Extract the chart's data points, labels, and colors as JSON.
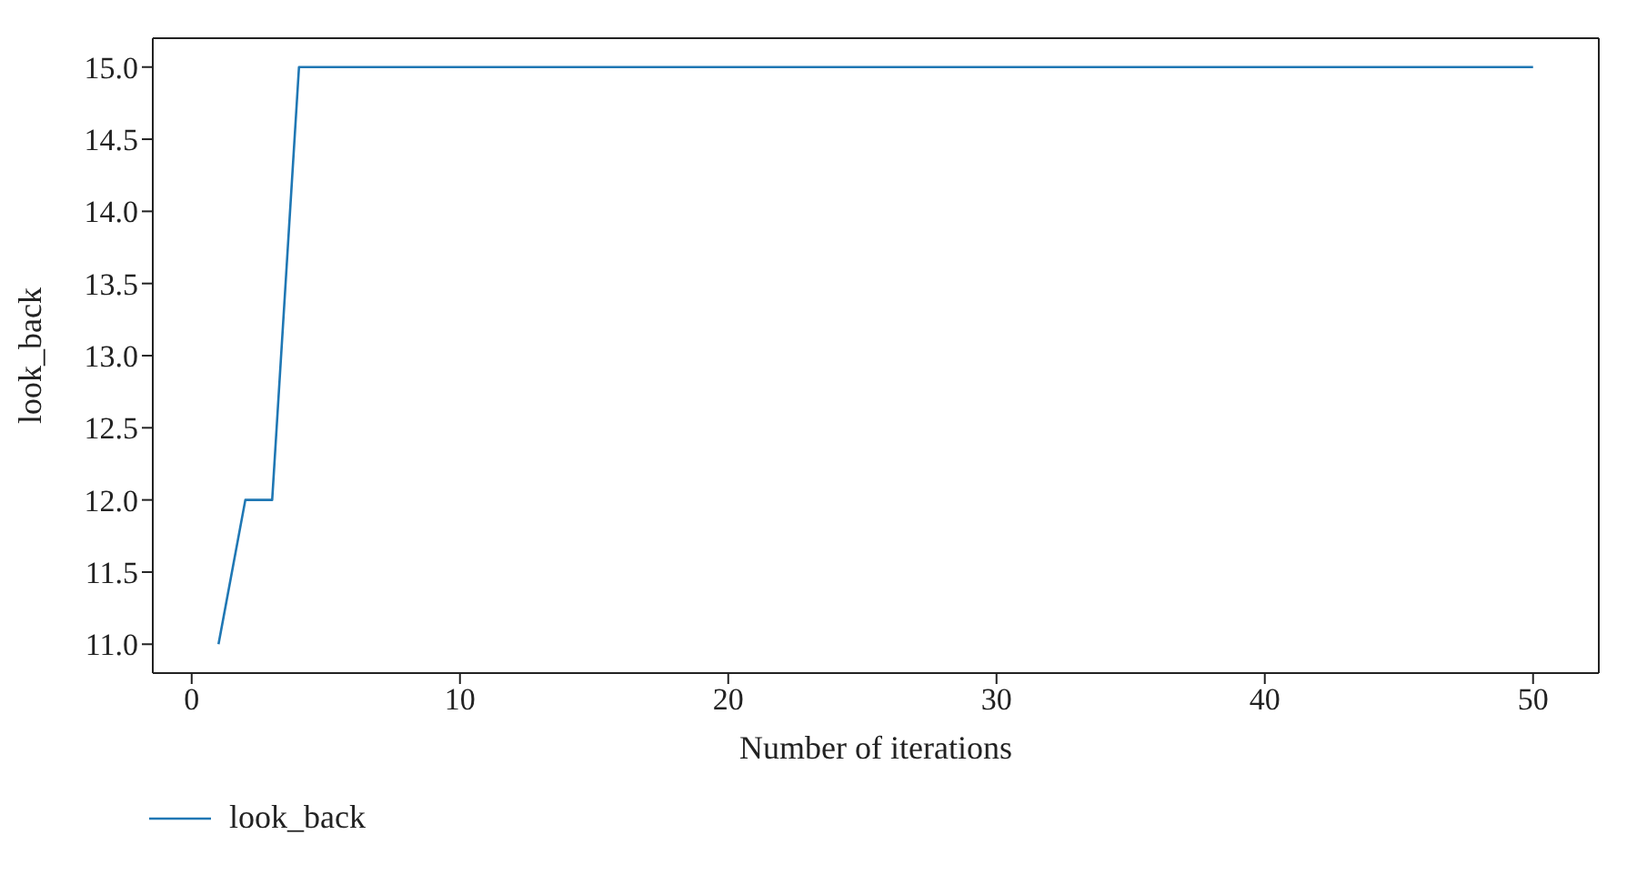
{
  "chart_data": {
    "type": "line",
    "xlabel": "Number of iterations",
    "ylabel": "look_back",
    "x": [
      1,
      2,
      3,
      4,
      5,
      6,
      7,
      8,
      9,
      10,
      11,
      12,
      13,
      14,
      15,
      16,
      17,
      18,
      19,
      20,
      21,
      22,
      23,
      24,
      25,
      26,
      27,
      28,
      29,
      30,
      31,
      32,
      33,
      34,
      35,
      36,
      37,
      38,
      39,
      40,
      41,
      42,
      43,
      44,
      45,
      46,
      47,
      48,
      49,
      50
    ],
    "series": [
      {
        "name": "look_back",
        "color": "#1f77b4",
        "values": [
          11,
          12,
          12,
          15,
          15,
          15,
          15,
          15,
          15,
          15,
          15,
          15,
          15,
          15,
          15,
          15,
          15,
          15,
          15,
          15,
          15,
          15,
          15,
          15,
          15,
          15,
          15,
          15,
          15,
          15,
          15,
          15,
          15,
          15,
          15,
          15,
          15,
          15,
          15,
          15,
          15,
          15,
          15,
          15,
          15,
          15,
          15,
          15,
          15,
          15
        ]
      }
    ],
    "xlim": [
      -1.45,
      52.45
    ],
    "xticks": [
      0,
      10,
      20,
      30,
      40,
      50
    ],
    "ylim": [
      10.8,
      15.2
    ],
    "yticks": [
      {
        "value": 11,
        "label": "11.0"
      },
      {
        "value": 11.5,
        "label": "11.5"
      },
      {
        "value": 12,
        "label": "12.0"
      },
      {
        "value": 12.5,
        "label": "12.5"
      },
      {
        "value": 13,
        "label": "13.0"
      },
      {
        "value": 13.5,
        "label": "13.5"
      },
      {
        "value": 14,
        "label": "14.0"
      },
      {
        "value": 14.5,
        "label": "14.5"
      },
      {
        "value": 15,
        "label": "15.0"
      }
    ],
    "grid": false,
    "legend": "bottom left",
    "marker": "none",
    "line_style": "solid"
  }
}
